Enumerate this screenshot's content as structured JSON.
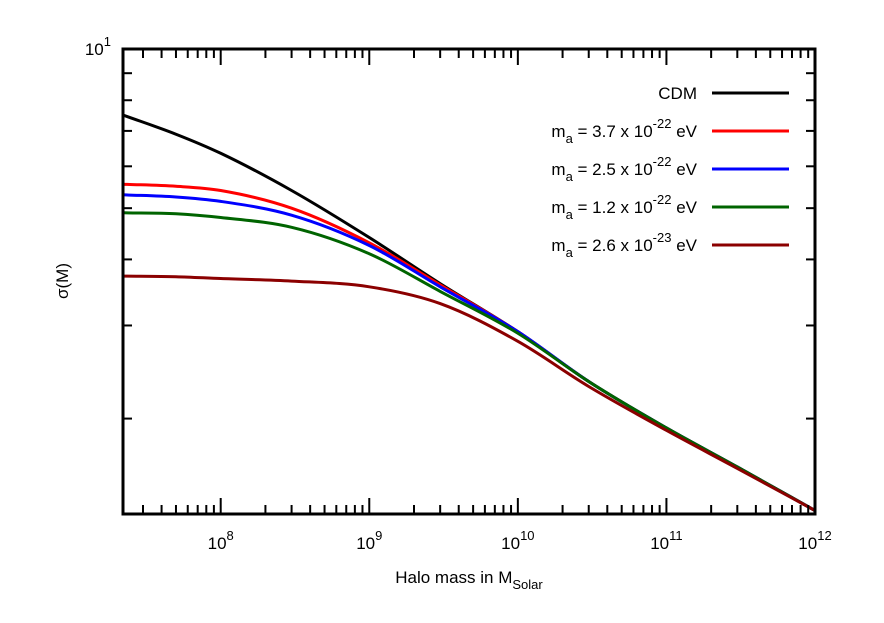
{
  "chart_data": {
    "type": "line",
    "title": "",
    "xlabel": {
      "text": "Halo mass in M",
      "sub": "Solar"
    },
    "ylabel": "σ(M)",
    "xscale": "log",
    "yscale": "log",
    "xlim": [
      22000000.0,
      1000000000000.0
    ],
    "ylim": [
      1.32,
      10
    ],
    "x_ticks": [
      {
        "base": "10",
        "exp": "8"
      },
      {
        "base": "10",
        "exp": "9"
      },
      {
        "base": "10",
        "exp": "10"
      },
      {
        "base": "10",
        "exp": "11"
      },
      {
        "base": "10",
        "exp": "12"
      }
    ],
    "y_ticks": [
      {
        "base": "10",
        "exp": "1"
      }
    ],
    "legend_position": "top-right",
    "grid": false,
    "series": [
      {
        "name": "CDM",
        "legend": {
          "main": "CDM",
          "sub": "",
          "mid": "",
          "sup": "",
          "tail": ""
        },
        "color": "#000000",
        "points": [
          [
            22000000.0,
            7.5
          ],
          [
            50000000.0,
            6.9
          ],
          [
            100000000.0,
            6.35
          ],
          [
            300000000.0,
            5.4
          ],
          [
            1000000000.0,
            4.4
          ],
          [
            3000000000.0,
            3.6
          ],
          [
            10000000000.0,
            2.92
          ],
          [
            30000000000.0,
            2.35
          ],
          [
            100000000000.0,
            1.92
          ],
          [
            300000000000.0,
            1.62
          ],
          [
            1000000000000.0,
            1.34
          ]
        ]
      },
      {
        "name": "m_a = 3.7 x 10^-22 eV",
        "legend": {
          "main": "m",
          "sub": "a",
          "mid": " = 3.7 x 10",
          "sup": "-22",
          "tail": " eV"
        },
        "color": "#ff0000",
        "points": [
          [
            22000000.0,
            5.55
          ],
          [
            50000000.0,
            5.5
          ],
          [
            100000000.0,
            5.4
          ],
          [
            300000000.0,
            5.0
          ],
          [
            1000000000.0,
            4.3
          ],
          [
            3000000000.0,
            3.58
          ],
          [
            10000000000.0,
            2.92
          ],
          [
            30000000000.0,
            2.35
          ],
          [
            100000000000.0,
            1.92
          ],
          [
            300000000000.0,
            1.62
          ],
          [
            1000000000000.0,
            1.34
          ]
        ]
      },
      {
        "name": "m_a = 2.5 x 10^-22 eV",
        "legend": {
          "main": "m",
          "sub": "a",
          "mid": " = 2.5 x 10",
          "sup": "-22",
          "tail": " eV"
        },
        "color": "#0000ff",
        "points": [
          [
            22000000.0,
            5.3
          ],
          [
            50000000.0,
            5.25
          ],
          [
            100000000.0,
            5.15
          ],
          [
            300000000.0,
            4.85
          ],
          [
            1000000000.0,
            4.25
          ],
          [
            3000000000.0,
            3.55
          ],
          [
            10000000000.0,
            2.92
          ],
          [
            30000000000.0,
            2.35
          ],
          [
            100000000000.0,
            1.92
          ],
          [
            300000000000.0,
            1.62
          ],
          [
            1000000000000.0,
            1.34
          ]
        ]
      },
      {
        "name": "m_a = 1.2 x 10^-22 eV",
        "legend": {
          "main": "m",
          "sub": "a",
          "mid": " = 1.2 x 10",
          "sup": "-22",
          "tail": " eV"
        },
        "color": "#006400",
        "points": [
          [
            22000000.0,
            4.9
          ],
          [
            50000000.0,
            4.88
          ],
          [
            100000000.0,
            4.8
          ],
          [
            300000000.0,
            4.6
          ],
          [
            1000000000.0,
            4.1
          ],
          [
            3000000000.0,
            3.48
          ],
          [
            10000000000.0,
            2.9
          ],
          [
            30000000000.0,
            2.35
          ],
          [
            100000000000.0,
            1.92
          ],
          [
            300000000000.0,
            1.62
          ],
          [
            1000000000000.0,
            1.34
          ]
        ]
      },
      {
        "name": "m_a = 2.6 x 10^-23 eV",
        "legend": {
          "main": "m",
          "sub": "a",
          "mid": " = 2.6 x 10",
          "sup": "-23",
          "tail": " eV"
        },
        "color": "#8b0000",
        "points": [
          [
            22000000.0,
            3.72
          ],
          [
            50000000.0,
            3.71
          ],
          [
            100000000.0,
            3.68
          ],
          [
            300000000.0,
            3.64
          ],
          [
            1000000000.0,
            3.55
          ],
          [
            3000000000.0,
            3.3
          ],
          [
            10000000000.0,
            2.8
          ],
          [
            30000000000.0,
            2.3
          ],
          [
            100000000000.0,
            1.9
          ],
          [
            300000000000.0,
            1.61
          ],
          [
            1000000000000.0,
            1.34
          ]
        ]
      }
    ]
  }
}
